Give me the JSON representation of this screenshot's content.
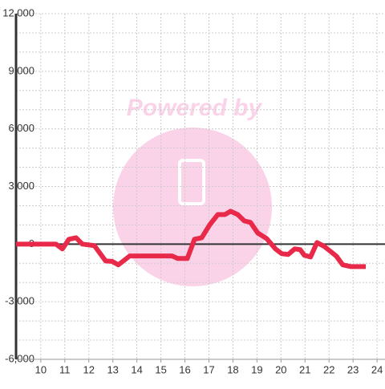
{
  "chart_data": {
    "type": "line",
    "watermark": "Powered by",
    "x": [
      8.97,
      10.63,
      10.9,
      11.17,
      11.47,
      11.73,
      12.23,
      12.7,
      12.97,
      13.23,
      13.7,
      15.47,
      15.7,
      16.1,
      16.4,
      16.7,
      17.03,
      17.37,
      17.67,
      17.9,
      18.2,
      18.47,
      18.73,
      19.03,
      19.4,
      19.77,
      20.03,
      20.3,
      20.57,
      20.8,
      20.97,
      21.23,
      21.5,
      21.8,
      22.3,
      22.57,
      22.9,
      23.53
    ],
    "series": [
      {
        "color": "#e8294a",
        "values": [
          0,
          0,
          -250,
          250,
          330,
          0,
          -80,
          -880,
          -900,
          -1080,
          -620,
          -620,
          -750,
          -750,
          250,
          330,
          1000,
          1540,
          1540,
          1710,
          1540,
          1210,
          1130,
          580,
          290,
          -250,
          -500,
          -540,
          -250,
          -290,
          -580,
          -670,
          80,
          -120,
          -620,
          -1080,
          -1170,
          -1170
        ]
      }
    ],
    "xlim": [
      8.97,
      24.33
    ],
    "xticks": [
      10,
      11,
      12,
      13,
      14,
      15,
      16,
      17,
      18,
      19,
      20,
      21,
      22,
      23,
      24
    ],
    "ylim": [
      -6000,
      12000
    ],
    "yticks": [
      {
        "value": -6000,
        "label": "-6,000"
      },
      {
        "value": -3000,
        "label": "-3,000"
      },
      0,
      {
        "value": 3000,
        "label": "3,000"
      },
      {
        "value": 6000,
        "label": "6,000"
      },
      {
        "value": 9000,
        "label": "9,000"
      },
      {
        "value": 12000,
        "label": "12,000"
      }
    ],
    "y_minor_ticks": [
      -5000,
      -4000,
      -2000,
      -1000,
      1000,
      2000,
      4000,
      5000,
      7000,
      8000,
      10000,
      11000
    ],
    "grid": true
  }
}
